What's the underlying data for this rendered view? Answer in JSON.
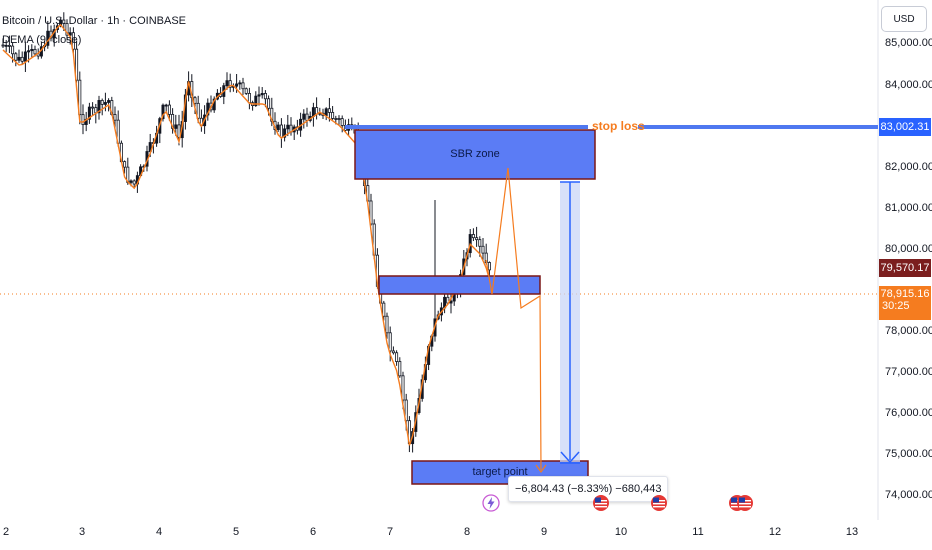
{
  "legend": {
    "symbol": "Bitcoin / U.S. Dollar · 1h · COINBASE",
    "indicator": "DEMA (9, close)"
  },
  "currency_button": "USD",
  "price_axis": [
    "85,000.00",
    "84,000.00",
    "82,000.00",
    "81,000.00",
    "80,000.00",
    "78,000.00",
    "77,000.00",
    "76,000.00",
    "75,000.00",
    "74,000.00"
  ],
  "time_axis": [
    "2",
    "3",
    "4",
    "5",
    "6",
    "7",
    "8",
    "9",
    "10",
    "11",
    "12",
    "13"
  ],
  "tags": {
    "stop_loss_price": "83,002.31",
    "dema_price": "79,570.17",
    "last_price": "78,915.16",
    "countdown": "30:25"
  },
  "annotations": {
    "sbr_zone": "SBR zone",
    "stop_loss": "stop loss",
    "target_point": "target point",
    "measure": "−6,804.43 (−8.33%) −680,443"
  },
  "colors": {
    "up_candle": "#131722",
    "zone_fill": "#5b7cf5",
    "zone_border": "#7a1616",
    "stop_line": "#4f78f0",
    "dema": "#f57c1f",
    "last_price_tag": "#f57c1f",
    "dema_tag": "#7b1e1e",
    "stop_tag": "#2962ff"
  },
  "icons": {
    "flash_event": "lightning-icon",
    "us_events": "us-flag-icon"
  }
}
